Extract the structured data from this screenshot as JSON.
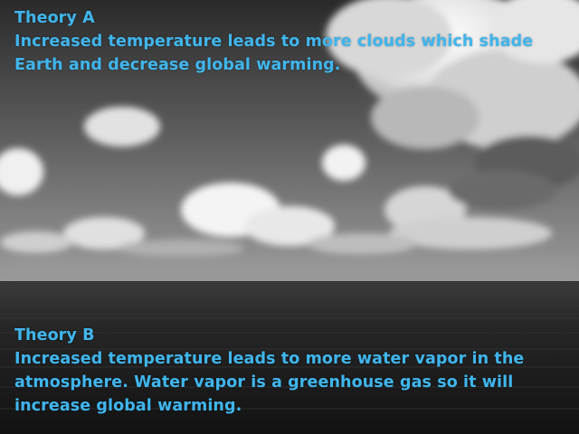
{
  "theory_a": {
    "heading": "Theory A",
    "body": "Increased temperature leads to more clouds which shade Earth and decrease global warming."
  },
  "theory_b": {
    "heading": "Theory B",
    "body": "Increased temperature leads to more water vapor in the atmosphere. Water vapor is a greenhouse gas so it will increase global warming."
  },
  "colors": {
    "text": "#3fb6ee",
    "sky_top": "#2e2e2e",
    "sky_horizon": "#8c8c8c",
    "sea": "#1a1a1a"
  }
}
